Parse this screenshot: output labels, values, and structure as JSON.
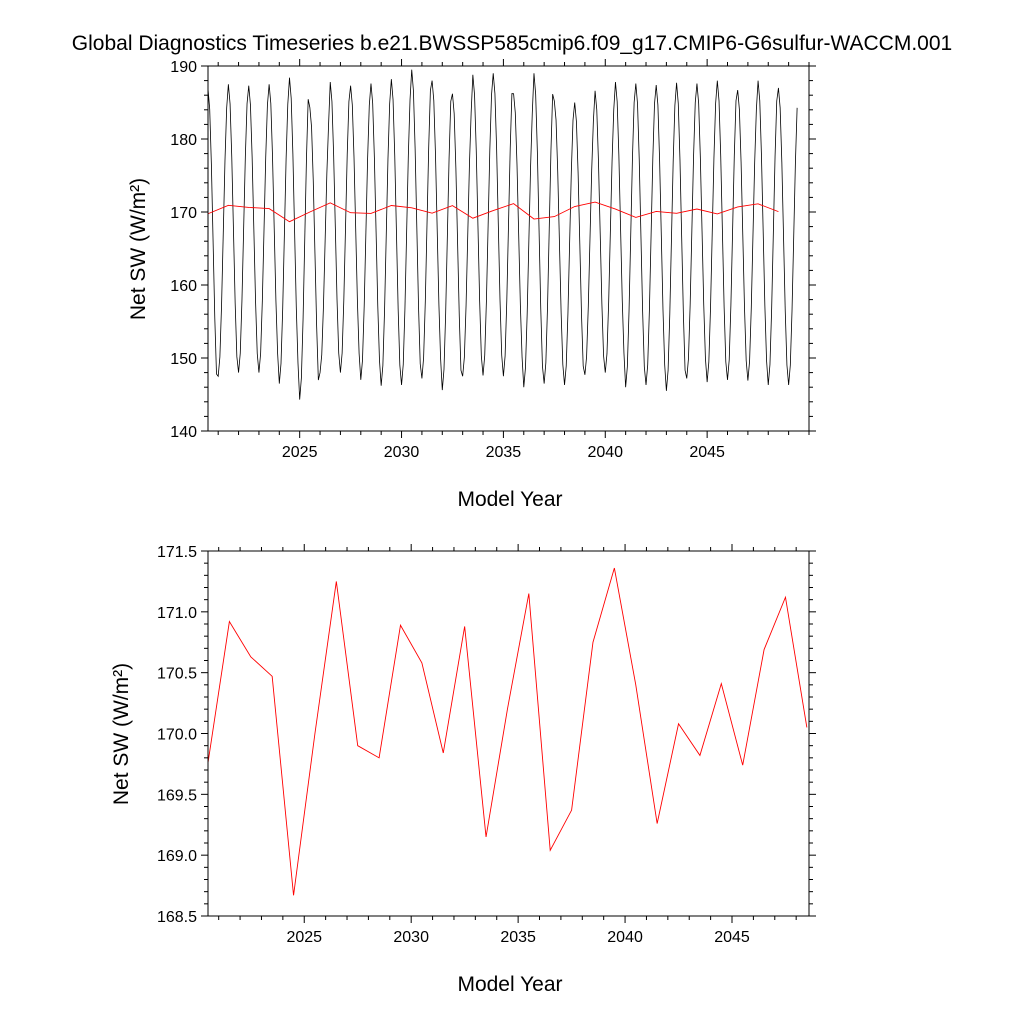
{
  "title": "Global Diagnostics Timeseries b.e21.BWSSP585cmip6.f09_g17.CMIP6-G6sulfur-WACCM.001",
  "colors": {
    "monthly": "#000000",
    "annual": "#ff0000"
  },
  "chart_data": [
    {
      "type": "line",
      "xlabel": "Model Year",
      "ylabel": "Net SW (W/m²)",
      "xlim": [
        2020.5,
        2050.0
      ],
      "ylim": [
        140,
        190
      ],
      "xticks": [
        2025,
        2030,
        2035,
        2040,
        2045
      ],
      "yticks": [
        140,
        150,
        160,
        170,
        180,
        190
      ],
      "monthly_series": {
        "x_start": 2020.5,
        "months_per_year": 12,
        "annual_peaks": [
          186.9,
          187.5,
          187.3,
          187.5,
          188.4,
          184.3,
          187.8,
          187.3,
          187.6,
          188.2,
          189.5,
          188.0,
          186.2,
          188.8,
          189.0,
          186.2,
          189.0,
          185.2,
          185.0,
          186.6,
          187.8,
          187.6,
          187.4,
          187.7,
          187.6,
          188.0,
          186.7,
          188.0,
          187.0
        ],
        "annual_troughs": [
          145.0,
          147.5,
          148.0,
          148.0,
          146.5,
          144.3,
          148.0,
          148.0,
          147.0,
          146.2,
          146.3,
          147.2,
          145.6,
          147.5,
          147.6,
          147.5,
          146.0,
          146.5,
          146.3,
          147.7,
          148.0,
          146.0,
          146.3,
          145.5,
          147.2,
          146.7,
          147.0,
          146.9,
          146.3
        ]
      },
      "series": [
        {
          "x": [
            2020.5,
            2021.5,
            2022.5,
            2023.5,
            2024.5,
            2025.5,
            2026.5,
            2027.5,
            2028.5,
            2029.5,
            2030.5,
            2031.5,
            2032.5,
            2033.5,
            2034.5,
            2035.5,
            2036.5,
            2037.5,
            2038.5,
            2039.5,
            2040.5,
            2041.5,
            2042.5,
            2043.5,
            2044.5,
            2045.5,
            2046.5,
            2047.5,
            2048.5
          ],
          "values": [
            169.76,
            170.92,
            170.63,
            170.47,
            168.67,
            170.0,
            171.25,
            169.9,
            169.8,
            170.89,
            170.58,
            169.84,
            170.88,
            169.15,
            170.2,
            171.15,
            169.04,
            169.37,
            170.75,
            171.36,
            170.4,
            169.26,
            170.08,
            169.82,
            170.41,
            169.74,
            170.69,
            171.12,
            170.05
          ]
        }
      ]
    },
    {
      "type": "line",
      "xlabel": "Model Year",
      "ylabel": "Net SW (W/m²)",
      "xlim": [
        2020.5,
        2048.6
      ],
      "ylim": [
        168.5,
        171.5
      ],
      "xticks": [
        2025,
        2030,
        2035,
        2040,
        2045
      ],
      "yticks": [
        168.5,
        169.0,
        169.5,
        170.0,
        170.5,
        171.0,
        171.5
      ],
      "series": [
        {
          "x": [
            2020.5,
            2021.5,
            2022.5,
            2023.5,
            2024.5,
            2025.5,
            2026.5,
            2027.5,
            2028.5,
            2029.5,
            2030.5,
            2031.5,
            2032.5,
            2033.5,
            2034.5,
            2035.5,
            2036.5,
            2037.5,
            2038.5,
            2039.5,
            2040.5,
            2041.5,
            2042.5,
            2043.5,
            2044.5,
            2045.5,
            2046.5,
            2047.5,
            2048.5
          ],
          "values": [
            169.76,
            170.92,
            170.63,
            170.47,
            168.67,
            170.0,
            171.25,
            169.9,
            169.8,
            170.89,
            170.58,
            169.84,
            170.88,
            169.15,
            170.2,
            171.15,
            169.04,
            169.37,
            170.75,
            171.36,
            170.4,
            169.26,
            170.08,
            169.82,
            170.41,
            169.74,
            170.69,
            171.12,
            170.05
          ]
        }
      ]
    }
  ]
}
